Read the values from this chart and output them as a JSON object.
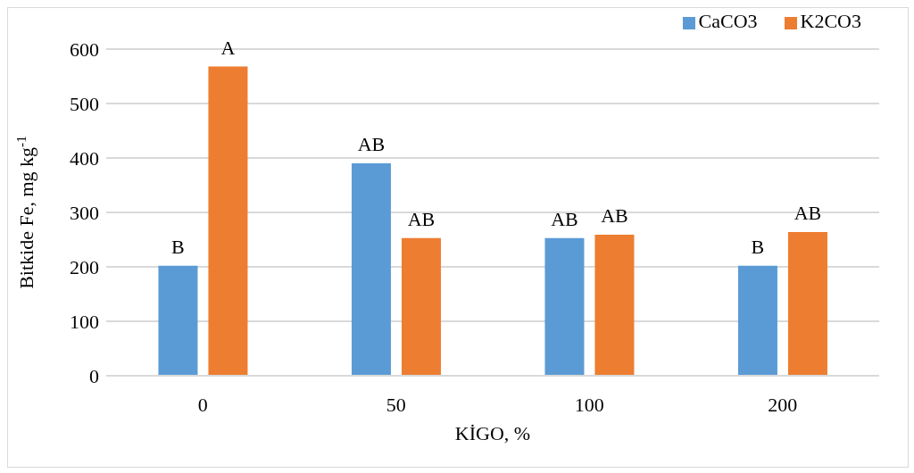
{
  "chart_data": {
    "type": "bar",
    "xlabel": "KİGO, %",
    "ylabel": "Bitkide Fe, mg kg$^{-1}$",
    "categories": [
      "0",
      "50",
      "100",
      "200"
    ],
    "series": [
      {
        "name": "CaCO3",
        "color": "#5b9bd5",
        "values": [
          202,
          390,
          253,
          202
        ],
        "value_labels": [
          "B",
          "AB",
          "AB",
          "B"
        ]
      },
      {
        "name": "K2CO3",
        "color": "#ed7d31",
        "values": [
          568,
          253,
          259,
          264
        ],
        "value_labels": [
          "A",
          "AB",
          "AB",
          "AB"
        ]
      }
    ],
    "ylim": [
      0,
      600
    ],
    "yticks": [
      0,
      100,
      200,
      300,
      400,
      500,
      600
    ],
    "grid": "y",
    "legend": "top right"
  }
}
